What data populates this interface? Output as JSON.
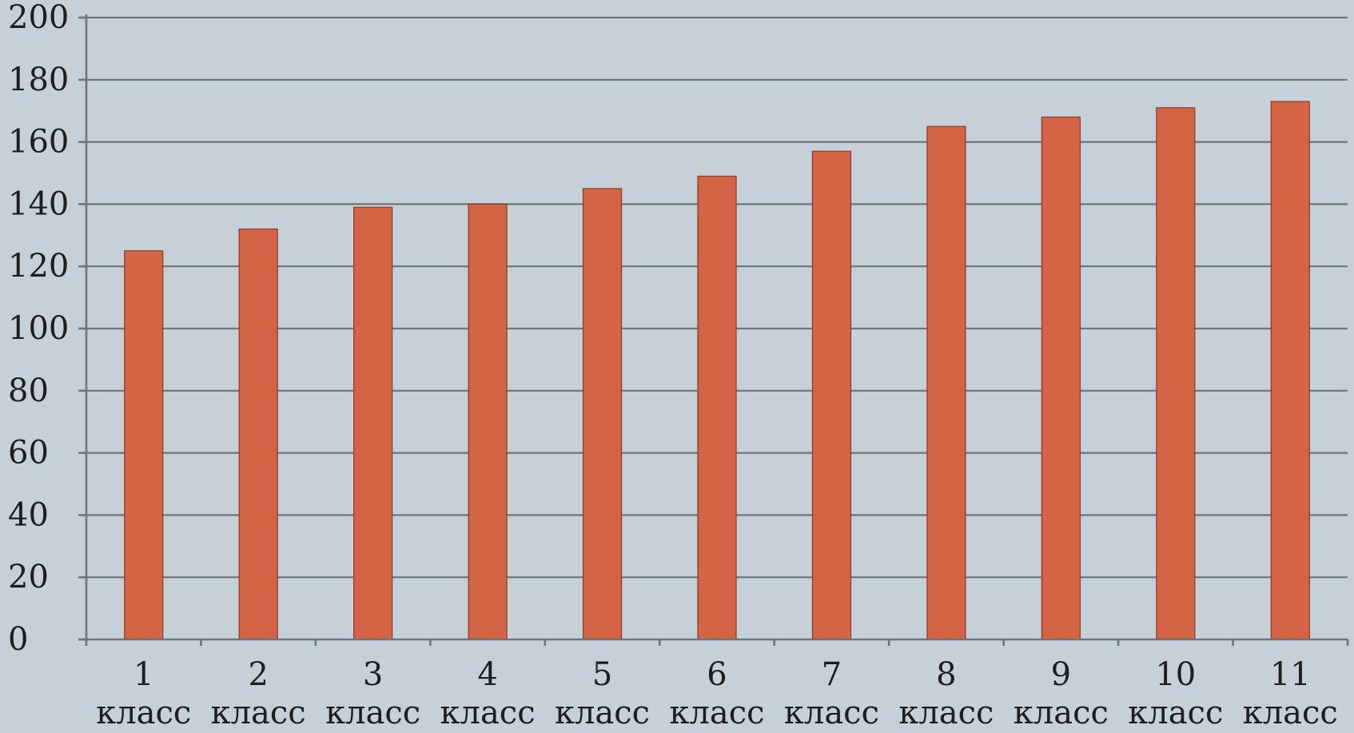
{
  "chart_data": {
    "type": "bar",
    "title": "",
    "xlabel": "",
    "ylabel": "",
    "categories": [
      [
        "1",
        "класс"
      ],
      [
        "2",
        "класс"
      ],
      [
        "3",
        "класс"
      ],
      [
        "4",
        "класс"
      ],
      [
        "5",
        "класс"
      ],
      [
        "6",
        "класс"
      ],
      [
        "7",
        "класс"
      ],
      [
        "8",
        "класс"
      ],
      [
        "9",
        "класс"
      ],
      [
        "10",
        "класс"
      ],
      [
        "11",
        "класс"
      ]
    ],
    "values": [
      125,
      132,
      139,
      140,
      145,
      149,
      157,
      165,
      168,
      171,
      173
    ],
    "ylim": [
      0,
      200
    ],
    "yticks": [
      0,
      20,
      40,
      60,
      80,
      100,
      120,
      140,
      160,
      180,
      200
    ],
    "grid": true,
    "legend": "none",
    "colors": {
      "background": "#c5d0d8",
      "bar": "#d36546",
      "grid": "#6f7478",
      "text": "#1e1e1e"
    }
  }
}
